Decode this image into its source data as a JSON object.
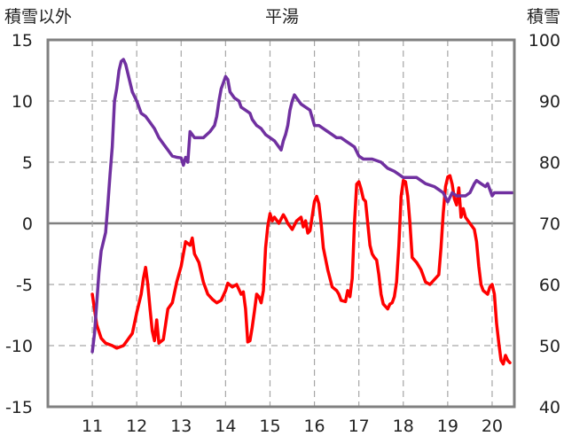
{
  "chart_data": {
    "type": "line",
    "title": "平湯",
    "left_axis_label": "積雪以外",
    "right_axis_label": "積雪",
    "x_ticks": [
      11,
      12,
      13,
      14,
      15,
      16,
      17,
      18,
      19,
      20
    ],
    "x_range": [
      10.0,
      20.5
    ],
    "y_left_range": [
      -15,
      15
    ],
    "y_left_ticks": [
      -15,
      -10,
      -5,
      0,
      5,
      10,
      15
    ],
    "y_right_range": [
      40,
      100
    ],
    "y_right_ticks": [
      40,
      50,
      60,
      70,
      80,
      90,
      100
    ],
    "grid": true,
    "colors": {
      "series_red": "#ff0000",
      "series_purple": "#7030a0",
      "frame": "#808080",
      "zero_line": "#808080",
      "grid": "#a6a6a6"
    },
    "series": [
      {
        "axis": "left",
        "color": "#ff0000",
        "points": [
          [
            11.0,
            -5.8
          ],
          [
            11.1,
            -8.3
          ],
          [
            11.2,
            -9.4
          ],
          [
            11.3,
            -9.8
          ],
          [
            11.45,
            -10.0
          ],
          [
            11.55,
            -10.2
          ],
          [
            11.7,
            -10.0
          ],
          [
            11.8,
            -9.5
          ],
          [
            11.9,
            -9.0
          ],
          [
            12.0,
            -7.3
          ],
          [
            12.1,
            -5.8
          ],
          [
            12.15,
            -4.5
          ],
          [
            12.2,
            -3.6
          ],
          [
            12.25,
            -5.0
          ],
          [
            12.3,
            -7.0
          ],
          [
            12.35,
            -8.8
          ],
          [
            12.4,
            -9.6
          ],
          [
            12.45,
            -7.9
          ],
          [
            12.5,
            -9.8
          ],
          [
            12.6,
            -9.5
          ],
          [
            12.7,
            -7.0
          ],
          [
            12.8,
            -6.5
          ],
          [
            12.9,
            -4.8
          ],
          [
            13.0,
            -3.5
          ],
          [
            13.1,
            -1.5
          ],
          [
            13.2,
            -1.8
          ],
          [
            13.25,
            -1.2
          ],
          [
            13.3,
            -2.5
          ],
          [
            13.4,
            -3.2
          ],
          [
            13.5,
            -4.8
          ],
          [
            13.6,
            -5.8
          ],
          [
            13.7,
            -6.2
          ],
          [
            13.8,
            -6.5
          ],
          [
            13.9,
            -6.3
          ],
          [
            14.0,
            -5.5
          ],
          [
            14.05,
            -4.9
          ],
          [
            14.15,
            -5.2
          ],
          [
            14.25,
            -5.0
          ],
          [
            14.35,
            -5.8
          ],
          [
            14.4,
            -5.6
          ],
          [
            14.45,
            -7.0
          ],
          [
            14.5,
            -9.7
          ],
          [
            14.55,
            -9.6
          ],
          [
            14.6,
            -8.5
          ],
          [
            14.65,
            -7.2
          ],
          [
            14.7,
            -5.8
          ],
          [
            14.75,
            -6.0
          ],
          [
            14.8,
            -6.5
          ],
          [
            14.85,
            -5.5
          ],
          [
            14.9,
            -2.0
          ],
          [
            14.95,
            -0.2
          ],
          [
            15.0,
            0.8
          ],
          [
            15.05,
            0.2
          ],
          [
            15.1,
            0.5
          ],
          [
            15.2,
            0.0
          ],
          [
            15.3,
            0.7
          ],
          [
            15.35,
            0.4
          ],
          [
            15.4,
            0.0
          ],
          [
            15.5,
            -0.5
          ],
          [
            15.6,
            0.2
          ],
          [
            15.7,
            0.5
          ],
          [
            15.75,
            -0.3
          ],
          [
            15.8,
            0.2
          ],
          [
            15.85,
            -0.8
          ],
          [
            15.9,
            -0.6
          ],
          [
            16.0,
            1.8
          ],
          [
            16.05,
            2.2
          ],
          [
            16.1,
            1.6
          ],
          [
            16.15,
            0.0
          ],
          [
            16.2,
            -2.0
          ],
          [
            16.3,
            -3.8
          ],
          [
            16.4,
            -5.2
          ],
          [
            16.5,
            -5.5
          ],
          [
            16.55,
            -5.8
          ],
          [
            16.6,
            -6.3
          ],
          [
            16.7,
            -6.4
          ],
          [
            16.75,
            -5.5
          ],
          [
            16.8,
            -6.0
          ],
          [
            16.85,
            -4.5
          ],
          [
            16.9,
            0.0
          ],
          [
            16.95,
            3.2
          ],
          [
            17.0,
            3.4
          ],
          [
            17.05,
            2.8
          ],
          [
            17.1,
            2.0
          ],
          [
            17.15,
            1.8
          ],
          [
            17.2,
            0.0
          ],
          [
            17.25,
            -1.8
          ],
          [
            17.3,
            -2.5
          ],
          [
            17.35,
            -2.8
          ],
          [
            17.4,
            -3.0
          ],
          [
            17.45,
            -4.2
          ],
          [
            17.5,
            -5.8
          ],
          [
            17.55,
            -6.6
          ],
          [
            17.6,
            -6.8
          ],
          [
            17.65,
            -7.0
          ],
          [
            17.7,
            -6.6
          ],
          [
            17.75,
            -6.5
          ],
          [
            17.8,
            -6.0
          ],
          [
            17.85,
            -4.8
          ],
          [
            17.9,
            -1.8
          ],
          [
            17.95,
            2.2
          ],
          [
            18.0,
            3.5
          ],
          [
            18.05,
            3.4
          ],
          [
            18.1,
            2.2
          ],
          [
            18.15,
            0.0
          ],
          [
            18.2,
            -2.8
          ],
          [
            18.3,
            -3.2
          ],
          [
            18.4,
            -3.8
          ],
          [
            18.5,
            -4.8
          ],
          [
            18.6,
            -5.0
          ],
          [
            18.7,
            -4.6
          ],
          [
            18.8,
            -4.2
          ],
          [
            18.85,
            -2.0
          ],
          [
            18.9,
            0.8
          ],
          [
            18.95,
            3.0
          ],
          [
            19.0,
            3.8
          ],
          [
            19.05,
            3.9
          ],
          [
            19.1,
            3.2
          ],
          [
            19.15,
            2.0
          ],
          [
            19.2,
            1.5
          ],
          [
            19.25,
            2.9
          ],
          [
            19.3,
            0.5
          ],
          [
            19.35,
            1.2
          ],
          [
            19.4,
            0.5
          ],
          [
            19.5,
            0.0
          ],
          [
            19.6,
            -0.5
          ],
          [
            19.65,
            -1.5
          ],
          [
            19.7,
            -3.5
          ],
          [
            19.75,
            -5.0
          ],
          [
            19.8,
            -5.5
          ],
          [
            19.9,
            -5.8
          ],
          [
            19.95,
            -5.2
          ],
          [
            20.0,
            -5.0
          ],
          [
            20.05,
            -5.8
          ],
          [
            20.1,
            -8.2
          ],
          [
            20.15,
            -9.8
          ],
          [
            20.2,
            -11.2
          ],
          [
            20.25,
            -11.5
          ],
          [
            20.3,
            -10.8
          ],
          [
            20.35,
            -11.2
          ],
          [
            20.4,
            -11.4
          ]
        ]
      },
      {
        "axis": "right",
        "color": "#7030a0",
        "points": [
          [
            11.0,
            49.0
          ],
          [
            11.05,
            52.0
          ],
          [
            11.1,
            57.0
          ],
          [
            11.15,
            62.0
          ],
          [
            11.2,
            65.5
          ],
          [
            11.3,
            68.5
          ],
          [
            11.35,
            73.0
          ],
          [
            11.4,
            78.0
          ],
          [
            11.45,
            82.5
          ],
          [
            11.5,
            90.0
          ],
          [
            11.55,
            92.0
          ],
          [
            11.6,
            95.0
          ],
          [
            11.65,
            96.5
          ],
          [
            11.7,
            96.8
          ],
          [
            11.75,
            96.0
          ],
          [
            11.8,
            94.5
          ],
          [
            11.85,
            93.0
          ],
          [
            11.9,
            91.5
          ],
          [
            12.0,
            90.0
          ],
          [
            12.05,
            89.0
          ],
          [
            12.1,
            88.0
          ],
          [
            12.2,
            87.5
          ],
          [
            12.3,
            86.5
          ],
          [
            12.4,
            85.5
          ],
          [
            12.5,
            84.0
          ],
          [
            12.6,
            83.0
          ],
          [
            12.7,
            82.0
          ],
          [
            12.8,
            81.0
          ],
          [
            12.9,
            80.8
          ],
          [
            13.0,
            80.7
          ],
          [
            13.05,
            79.5
          ],
          [
            13.1,
            80.8
          ],
          [
            13.15,
            80.0
          ],
          [
            13.2,
            85.0
          ],
          [
            13.25,
            84.5
          ],
          [
            13.3,
            84.0
          ],
          [
            13.5,
            84.0
          ],
          [
            13.65,
            85.0
          ],
          [
            13.75,
            86.0
          ],
          [
            13.8,
            87.5
          ],
          [
            13.85,
            90.0
          ],
          [
            13.9,
            92.0
          ],
          [
            13.95,
            93.0
          ],
          [
            14.0,
            94.0
          ],
          [
            14.05,
            93.5
          ],
          [
            14.1,
            91.5
          ],
          [
            14.2,
            90.5
          ],
          [
            14.3,
            90.0
          ],
          [
            14.35,
            89.0
          ],
          [
            14.45,
            88.5
          ],
          [
            14.55,
            88.0
          ],
          [
            14.6,
            87.0
          ],
          [
            14.7,
            86.0
          ],
          [
            14.8,
            85.5
          ],
          [
            14.9,
            84.5
          ],
          [
            15.0,
            84.0
          ],
          [
            15.1,
            83.5
          ],
          [
            15.2,
            82.5
          ],
          [
            15.25,
            82.0
          ],
          [
            15.3,
            83.5
          ],
          [
            15.35,
            84.5
          ],
          [
            15.4,
            86.0
          ],
          [
            15.45,
            88.5
          ],
          [
            15.5,
            90.0
          ],
          [
            15.55,
            91.0
          ],
          [
            15.6,
            90.5
          ],
          [
            15.7,
            89.5
          ],
          [
            15.8,
            89.0
          ],
          [
            15.9,
            88.5
          ],
          [
            16.0,
            86.0
          ],
          [
            16.1,
            86.0
          ],
          [
            16.2,
            85.5
          ],
          [
            16.3,
            85.0
          ],
          [
            16.4,
            84.5
          ],
          [
            16.5,
            84.0
          ],
          [
            16.6,
            84.0
          ],
          [
            16.7,
            83.5
          ],
          [
            16.8,
            83.0
          ],
          [
            16.9,
            82.5
          ],
          [
            17.0,
            81.0
          ],
          [
            17.1,
            80.5
          ],
          [
            17.3,
            80.5
          ],
          [
            17.5,
            80.0
          ],
          [
            17.65,
            79.0
          ],
          [
            17.8,
            78.5
          ],
          [
            17.9,
            78.0
          ],
          [
            18.0,
            77.5
          ],
          [
            18.3,
            77.5
          ],
          [
            18.5,
            76.5
          ],
          [
            18.7,
            76.0
          ],
          [
            18.8,
            75.5
          ],
          [
            18.9,
            75.0
          ],
          [
            19.0,
            73.5
          ],
          [
            19.1,
            75.0
          ],
          [
            19.2,
            74.5
          ],
          [
            19.3,
            74.5
          ],
          [
            19.4,
            74.5
          ],
          [
            19.5,
            75.0
          ],
          [
            19.6,
            76.5
          ],
          [
            19.65,
            77.0
          ],
          [
            19.75,
            76.5
          ],
          [
            19.85,
            76.0
          ],
          [
            19.9,
            76.5
          ],
          [
            20.0,
            74.5
          ],
          [
            20.05,
            75.0
          ],
          [
            20.3,
            75.0
          ],
          [
            20.45,
            75.0
          ]
        ]
      }
    ]
  }
}
